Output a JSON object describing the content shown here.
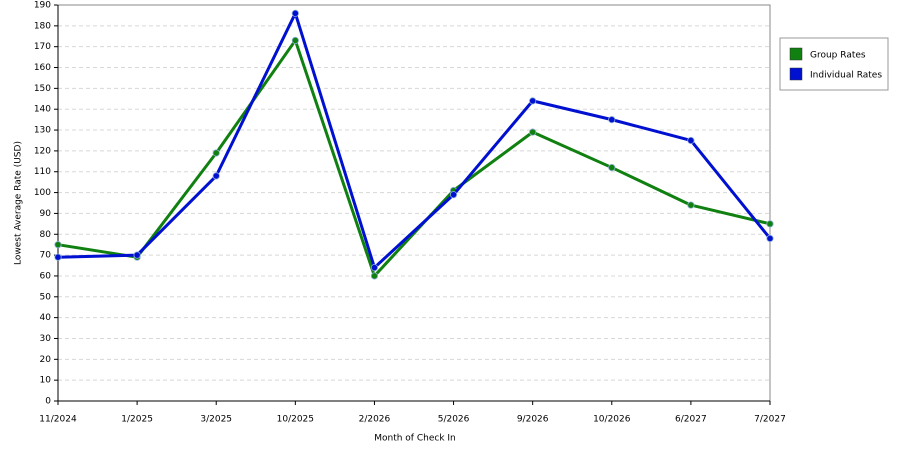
{
  "chart_data": {
    "type": "line",
    "x_label": "Month of Check In",
    "y_label": "Lowest Average Rate (USD)",
    "categories": [
      "11/2024",
      "1/2025",
      "3/2025",
      "10/2025",
      "2/2026",
      "5/2026",
      "9/2026",
      "10/2026",
      "6/2027",
      "7/2027"
    ],
    "series": [
      {
        "name": "Group Rates",
        "color": "#108010",
        "values": [
          75,
          69,
          119,
          173,
          60,
          101,
          129,
          112,
          94,
          85
        ]
      },
      {
        "name": "Individual Rates",
        "color": "#0010d0",
        "values": [
          69,
          70,
          108,
          186,
          64,
          99,
          144,
          135,
          125,
          78
        ]
      }
    ],
    "ylim": [
      0,
      190
    ],
    "yticks": [
      0,
      10,
      20,
      30,
      40,
      50,
      60,
      70,
      80,
      90,
      100,
      110,
      120,
      130,
      140,
      150,
      160,
      170,
      180,
      190
    ],
    "grid": true,
    "legend": "right"
  }
}
